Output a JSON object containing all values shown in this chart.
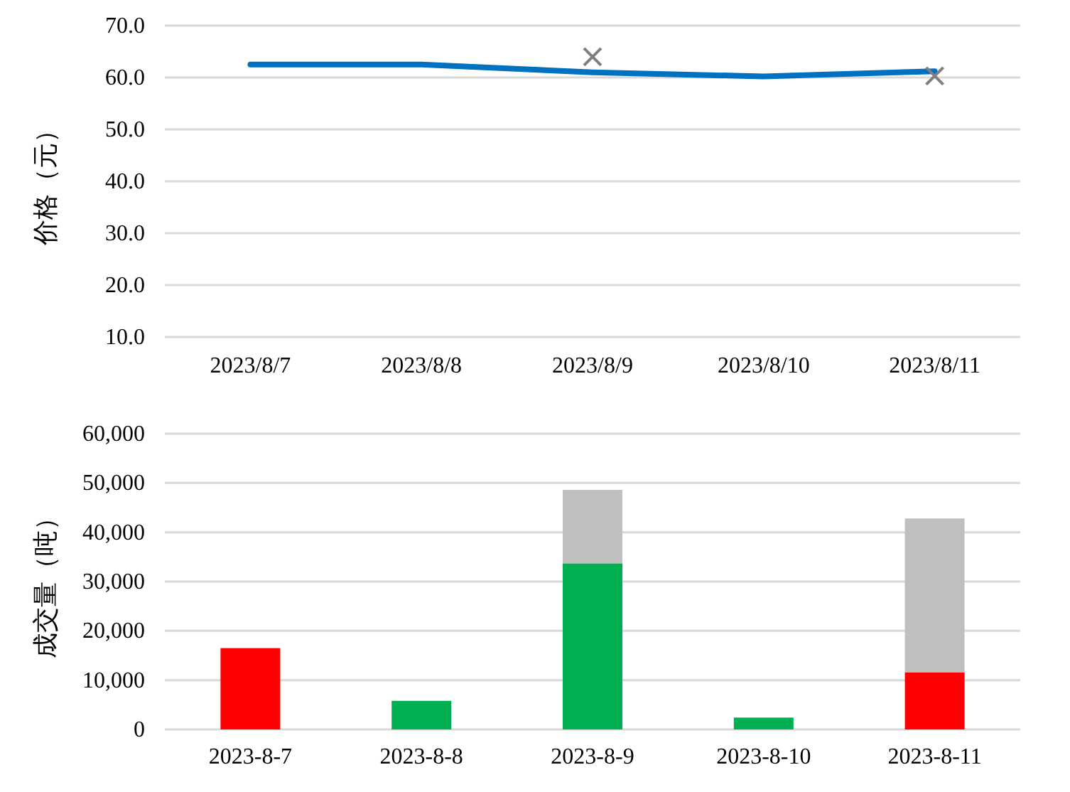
{
  "chart_data": [
    {
      "type": "line",
      "ylabel": "价格（元）",
      "categories": [
        "2023/8/7",
        "2023/8/8",
        "2023/8/9",
        "2023/8/10",
        "2023/8/11"
      ],
      "series": [
        {
          "color": "#0070c0",
          "values": [
            62.5,
            62.5,
            61,
            60.2,
            61.2
          ]
        },
        {
          "type": "scatter",
          "marker": "cross",
          "color": "#7f7f7f",
          "x": [
            "2023/8/9",
            "2023/8/11"
          ],
          "values": [
            64,
            60.3
          ]
        }
      ],
      "ylim": [
        10,
        70
      ],
      "yticks": [
        {
          "value": 10,
          "label": "10.0"
        },
        {
          "value": 20,
          "label": "20.0"
        },
        {
          "value": 30,
          "label": "30.0"
        },
        {
          "value": 40,
          "label": "40.0"
        },
        {
          "value": 50,
          "label": "50.0"
        },
        {
          "value": 60,
          "label": "60.0"
        },
        {
          "value": 70,
          "label": "70.0"
        }
      ],
      "grid": "y"
    },
    {
      "type": "bar",
      "stacked": true,
      "ylabel": "成交量（吨）",
      "categories": [
        "2023-8-7",
        "2023-8-8",
        "2023-8-9",
        "2023-8-10",
        "2023-8-11"
      ],
      "series": [
        {
          "colors": [
            "#ff0000",
            "#00b050",
            "#00b050",
            "#00b050",
            "#ff0000"
          ],
          "values": [
            16500,
            5800,
            33700,
            2400,
            11600
          ]
        },
        {
          "color": "#bfbfbf",
          "values": [
            null,
            null,
            14900,
            null,
            31200
          ]
        }
      ],
      "ylim": [
        0,
        60000
      ],
      "yticks": [
        0,
        {
          "value": 10000,
          "label": "10,000"
        },
        {
          "value": 20000,
          "label": "20,000"
        },
        {
          "value": 30000,
          "label": "30,000"
        },
        {
          "value": 40000,
          "label": "40,000"
        },
        {
          "value": 50000,
          "label": "50,000"
        },
        {
          "value": 60000,
          "label": "60,000"
        }
      ],
      "grid": "y"
    }
  ]
}
